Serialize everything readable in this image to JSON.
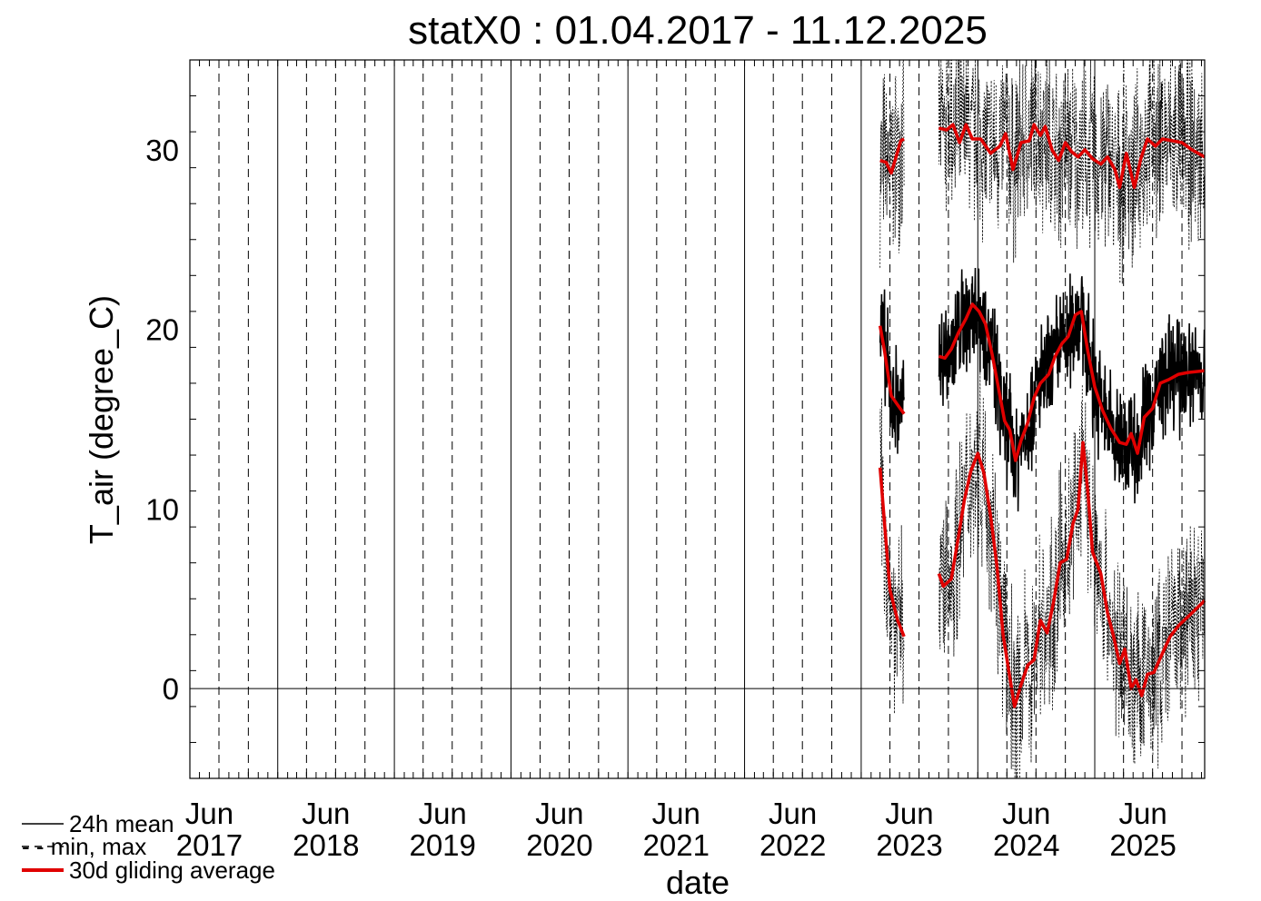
{
  "chart_data": {
    "type": "line",
    "title": "statX0 : 01.04.2017 - 11.12.2025",
    "xlabel": "date",
    "ylabel": "T_air (degree_C)",
    "xlim": [
      "2017-04-01",
      "2025-12-11"
    ],
    "ylim": [
      -5,
      35
    ],
    "yticks": [
      0,
      10,
      20,
      30
    ],
    "xticks": [
      {
        "month": "Jun",
        "year": "2017",
        "date": "2017-06-01"
      },
      {
        "month": "Jun",
        "year": "2018",
        "date": "2018-06-01"
      },
      {
        "month": "Jun",
        "year": "2019",
        "date": "2019-06-01"
      },
      {
        "month": "Jun",
        "year": "2020",
        "date": "2020-06-01"
      },
      {
        "month": "Jun",
        "year": "2021",
        "date": "2021-06-01"
      },
      {
        "month": "Jun",
        "year": "2022",
        "date": "2022-06-01"
      },
      {
        "month": "Jun",
        "year": "2023",
        "date": "2023-06-01"
      },
      {
        "month": "Jun",
        "year": "2024",
        "date": "2024-06-01"
      },
      {
        "month": "Jun",
        "year": "2025",
        "date": "2025-06-01"
      }
    ],
    "zero_line": 0,
    "grid": "vertical: solid at year boundaries, dashed at quarters",
    "legend": {
      "placement": "bottom-left",
      "entries": [
        {
          "label": "24h mean",
          "style": "solid",
          "color": "#000000"
        },
        {
          "label": "- - min, max",
          "style": "dashed",
          "color": "#000000"
        },
        {
          "label": "30d gliding average",
          "style": "solid-thick",
          "color": "#e00000"
        }
      ]
    },
    "series": [
      {
        "name": "30d gliding average (max)",
        "color": "#e00000",
        "segments": [
          [
            [
              "2023-03-01",
              29.4
            ],
            [
              "2023-03-20",
              29.3
            ],
            [
              "2023-04-05",
              28.7
            ],
            [
              "2023-04-20",
              29.6
            ],
            [
              "2023-05-05",
              30.5
            ],
            [
              "2023-05-15",
              30.6
            ]
          ],
          [
            [
              "2023-09-01",
              31.2
            ],
            [
              "2023-09-25",
              31.1
            ],
            [
              "2023-10-15",
              31.4
            ],
            [
              "2023-11-05",
              30.4
            ],
            [
              "2023-11-25",
              31.4
            ],
            [
              "2023-12-15",
              30.6
            ],
            [
              "2024-01-10",
              30.6
            ],
            [
              "2024-02-10",
              29.8
            ],
            [
              "2024-03-10",
              30.2
            ],
            [
              "2024-03-28",
              30.9
            ],
            [
              "2024-04-20",
              28.9
            ],
            [
              "2024-05-15",
              30.4
            ],
            [
              "2024-06-10",
              30.5
            ],
            [
              "2024-06-25",
              31.4
            ],
            [
              "2024-07-15",
              30.8
            ],
            [
              "2024-07-30",
              31.3
            ],
            [
              "2024-08-20",
              30.0
            ],
            [
              "2024-09-10",
              29.4
            ],
            [
              "2024-10-01",
              30.4
            ],
            [
              "2024-10-20",
              29.9
            ],
            [
              "2024-11-10",
              29.6
            ],
            [
              "2024-12-01",
              30.0
            ],
            [
              "2024-12-25",
              29.5
            ],
            [
              "2025-01-20",
              29.2
            ],
            [
              "2025-02-10",
              29.6
            ],
            [
              "2025-03-05",
              28.9
            ],
            [
              "2025-03-20",
              27.9
            ],
            [
              "2025-04-10",
              29.8
            ],
            [
              "2025-05-05",
              27.9
            ],
            [
              "2025-05-25",
              29.5
            ],
            [
              "2025-06-15",
              30.6
            ],
            [
              "2025-07-10",
              30.2
            ],
            [
              "2025-08-01",
              30.6
            ],
            [
              "2025-09-01",
              30.5
            ],
            [
              "2025-10-01",
              30.4
            ],
            [
              "2025-11-01",
              30.0
            ],
            [
              "2025-12-11",
              29.6
            ]
          ]
        ]
      },
      {
        "name": "30d gliding average (mean)",
        "color": "#e00000",
        "segments": [
          [
            [
              "2023-03-01",
              20.2
            ],
            [
              "2023-03-15",
              18.8
            ],
            [
              "2023-04-05",
              16.3
            ],
            [
              "2023-04-25",
              15.8
            ],
            [
              "2023-05-15",
              15.3
            ]
          ],
          [
            [
              "2023-09-01",
              18.5
            ],
            [
              "2023-09-20",
              18.4
            ],
            [
              "2023-10-10",
              18.9
            ],
            [
              "2023-11-01",
              19.8
            ],
            [
              "2023-11-25",
              20.6
            ],
            [
              "2023-12-15",
              21.4
            ],
            [
              "2024-01-05",
              21.0
            ],
            [
              "2024-01-25",
              20.3
            ],
            [
              "2024-02-15",
              18.6
            ],
            [
              "2024-03-05",
              16.8
            ],
            [
              "2024-03-25",
              14.9
            ],
            [
              "2024-04-10",
              14.4
            ],
            [
              "2024-04-28",
              12.7
            ],
            [
              "2024-05-15",
              13.8
            ],
            [
              "2024-06-05",
              14.8
            ],
            [
              "2024-06-25",
              16.2
            ],
            [
              "2024-07-15",
              17.0
            ],
            [
              "2024-08-10",
              17.5
            ],
            [
              "2024-08-30",
              18.5
            ],
            [
              "2024-09-20",
              19.2
            ],
            [
              "2024-10-10",
              19.6
            ],
            [
              "2024-11-01",
              20.8
            ],
            [
              "2024-11-20",
              21.0
            ],
            [
              "2024-12-10",
              18.8
            ],
            [
              "2025-01-01",
              16.8
            ],
            [
              "2025-01-25",
              15.5
            ],
            [
              "2025-02-20",
              14.5
            ],
            [
              "2025-03-20",
              13.7
            ],
            [
              "2025-04-10",
              13.6
            ],
            [
              "2025-04-25",
              14.2
            ],
            [
              "2025-05-15",
              13.1
            ],
            [
              "2025-06-05",
              15.1
            ],
            [
              "2025-07-01",
              15.6
            ],
            [
              "2025-07-25",
              17.0
            ],
            [
              "2025-08-20",
              17.2
            ],
            [
              "2025-09-20",
              17.5
            ],
            [
              "2025-10-20",
              17.6
            ],
            [
              "2025-12-11",
              17.7
            ]
          ]
        ]
      },
      {
        "name": "30d gliding average (min)",
        "color": "#e00000",
        "segments": [
          [
            [
              "2023-03-01",
              12.3
            ],
            [
              "2023-03-15",
              9.2
            ],
            [
              "2023-04-01",
              5.5
            ],
            [
              "2023-04-25",
              3.8
            ],
            [
              "2023-05-15",
              2.9
            ]
          ],
          [
            [
              "2023-09-01",
              6.4
            ],
            [
              "2023-09-15",
              5.7
            ],
            [
              "2023-10-10",
              6.1
            ],
            [
              "2023-11-01",
              8.4
            ],
            [
              "2023-11-20",
              10.5
            ],
            [
              "2023-12-10",
              12.1
            ],
            [
              "2024-01-01",
              13.1
            ],
            [
              "2024-01-20",
              12.0
            ],
            [
              "2024-02-10",
              9.6
            ],
            [
              "2024-03-01",
              6.8
            ],
            [
              "2024-03-20",
              3.0
            ],
            [
              "2024-04-05",
              1.2
            ],
            [
              "2024-04-25",
              -1.0
            ],
            [
              "2024-05-15",
              0.2
            ],
            [
              "2024-06-05",
              1.3
            ],
            [
              "2024-06-25",
              1.6
            ],
            [
              "2024-07-15",
              3.8
            ],
            [
              "2024-08-05",
              3.1
            ],
            [
              "2024-08-25",
              4.8
            ],
            [
              "2024-09-15",
              7.0
            ],
            [
              "2024-10-05",
              7.2
            ],
            [
              "2024-10-25",
              9.2
            ],
            [
              "2024-11-10",
              10.0
            ],
            [
              "2024-11-25",
              13.7
            ],
            [
              "2024-12-10",
              11.0
            ],
            [
              "2024-12-25",
              7.6
            ],
            [
              "2025-01-20",
              6.4
            ],
            [
              "2025-02-10",
              4.2
            ],
            [
              "2025-03-01",
              2.9
            ],
            [
              "2025-03-20",
              1.4
            ],
            [
              "2025-04-05",
              2.2
            ],
            [
              "2025-04-25",
              0.0
            ],
            [
              "2025-05-10",
              0.5
            ],
            [
              "2025-05-28",
              -0.4
            ],
            [
              "2025-06-15",
              0.8
            ],
            [
              "2025-07-05",
              0.9
            ],
            [
              "2025-07-30",
              1.9
            ],
            [
              "2025-08-25",
              2.9
            ],
            [
              "2025-09-20",
              3.5
            ],
            [
              "2025-10-20",
              4.0
            ],
            [
              "2025-12-11",
              4.9
            ]
          ]
        ]
      }
    ]
  }
}
